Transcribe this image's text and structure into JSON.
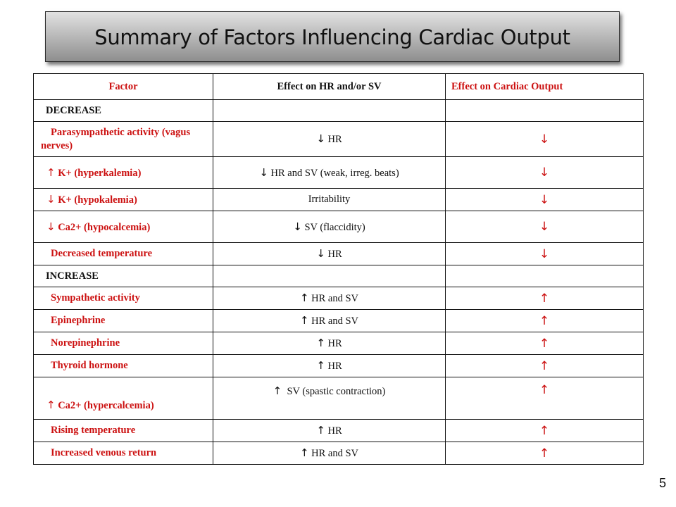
{
  "slide": {
    "title": "Summary of Factors Influencing  Cardiac Output",
    "page_number": "5"
  },
  "table": {
    "headers": [
      "Factor",
      "Effect on HR and/or SV",
      "Effect on Cardiac Output"
    ],
    "sections": [
      {
        "label": "DECREASE",
        "rows": [
          {
            "factor": "Parasympathetic activity (vagus nerves)",
            "factor_arrow": "",
            "effect_arrow": "↓",
            "effect": "HR",
            "output": "↓"
          },
          {
            "factor": "K+ (hyperkalemia)",
            "factor_arrow": "↑",
            "effect_arrow": "↓",
            "effect": "HR and SV (weak, irreg. beats)",
            "output": "↓"
          },
          {
            "factor": "K+ (hypokalemia)",
            "factor_arrow": "↓",
            "effect_arrow": "",
            "effect": "Irritability",
            "output": "↓"
          },
          {
            "factor": "Ca2+ (hypocalcemia)",
            "factor_arrow": "↓",
            "effect_arrow": "↓",
            "effect": "SV (flaccidity)",
            "output": "↓"
          },
          {
            "factor": "Decreased temperature",
            "factor_arrow": "",
            "effect_arrow": "↓",
            "effect": "HR",
            "output": "↓"
          }
        ]
      },
      {
        "label": "INCREASE",
        "rows": [
          {
            "factor": "Sympathetic activity",
            "factor_arrow": "",
            "effect_arrow": "↑",
            "effect": "HR and SV",
            "output": "↑"
          },
          {
            "factor": "Epinephrine",
            "factor_arrow": "",
            "effect_arrow": "↑",
            "effect": "HR and SV",
            "output": "↑"
          },
          {
            "factor": "Norepinephrine",
            "factor_arrow": "",
            "effect_arrow": "↑",
            "effect": "HR",
            "output": "↑"
          },
          {
            "factor": "Thyroid hormone",
            "factor_arrow": "",
            "effect_arrow": "↑",
            "effect": "HR",
            "output": "↑"
          },
          {
            "factor": "Ca2+ (hypercalcemia)",
            "factor_arrow": "↑",
            "effect_arrow": "↑",
            "effect": "SV (spastic contraction)",
            "output": "↑"
          },
          {
            "factor": "Rising temperature",
            "factor_arrow": "",
            "effect_arrow": "↑",
            "effect": "HR",
            "output": "↑"
          },
          {
            "factor": "Increased venous return",
            "factor_arrow": "",
            "effect_arrow": "↑",
            "effect": "HR and SV",
            "output": "↑"
          }
        ]
      }
    ]
  }
}
